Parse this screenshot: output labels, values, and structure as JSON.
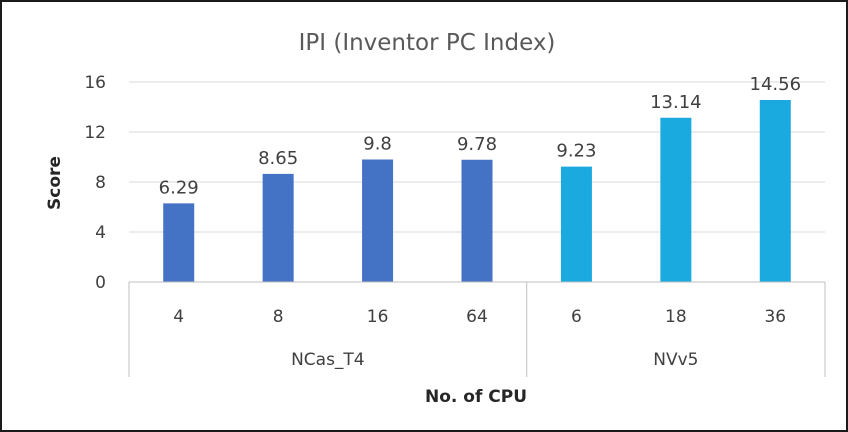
{
  "chart_data": {
    "type": "bar",
    "title": "IPI (Inventor PC Index)",
    "xlabel": "No. of CPU",
    "ylabel": "Score",
    "ylim": [
      0,
      16
    ],
    "yticks": [
      0,
      4,
      8,
      12,
      16
    ],
    "grid": true,
    "groups": [
      {
        "name": "NCas_T4",
        "color": "#4472C4",
        "categories": [
          "4",
          "8",
          "16",
          "64"
        ],
        "values": [
          6.29,
          8.65,
          9.8,
          9.78
        ]
      },
      {
        "name": "NVv5",
        "color": "#1AAADF",
        "categories": [
          "6",
          "18",
          "36"
        ],
        "values": [
          9.23,
          13.14,
          14.56
        ]
      }
    ]
  }
}
